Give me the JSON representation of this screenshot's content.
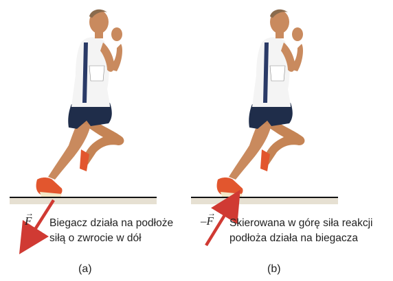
{
  "panels": [
    {
      "id": "a",
      "force_symbol": "F",
      "caption_line1": "Biegacz działa na podłoże",
      "caption_line2": "siłą o zwrocie w dół",
      "label": "(a)"
    },
    {
      "id": "b",
      "force_symbol": "–F",
      "caption_line1": "Skierowana w górę siła reakcji",
      "caption_line2": "podłoża działa na biegacza",
      "label": "(b)"
    }
  ],
  "colors": {
    "force_arrow": "#d03a33",
    "ground_line": "#111111",
    "ground_shadow": "#d8d0bf",
    "skin": "#c98a5e",
    "shirt": "#f4f4f4",
    "shorts": "#1f2d4a",
    "shoe": "#e2562e"
  }
}
